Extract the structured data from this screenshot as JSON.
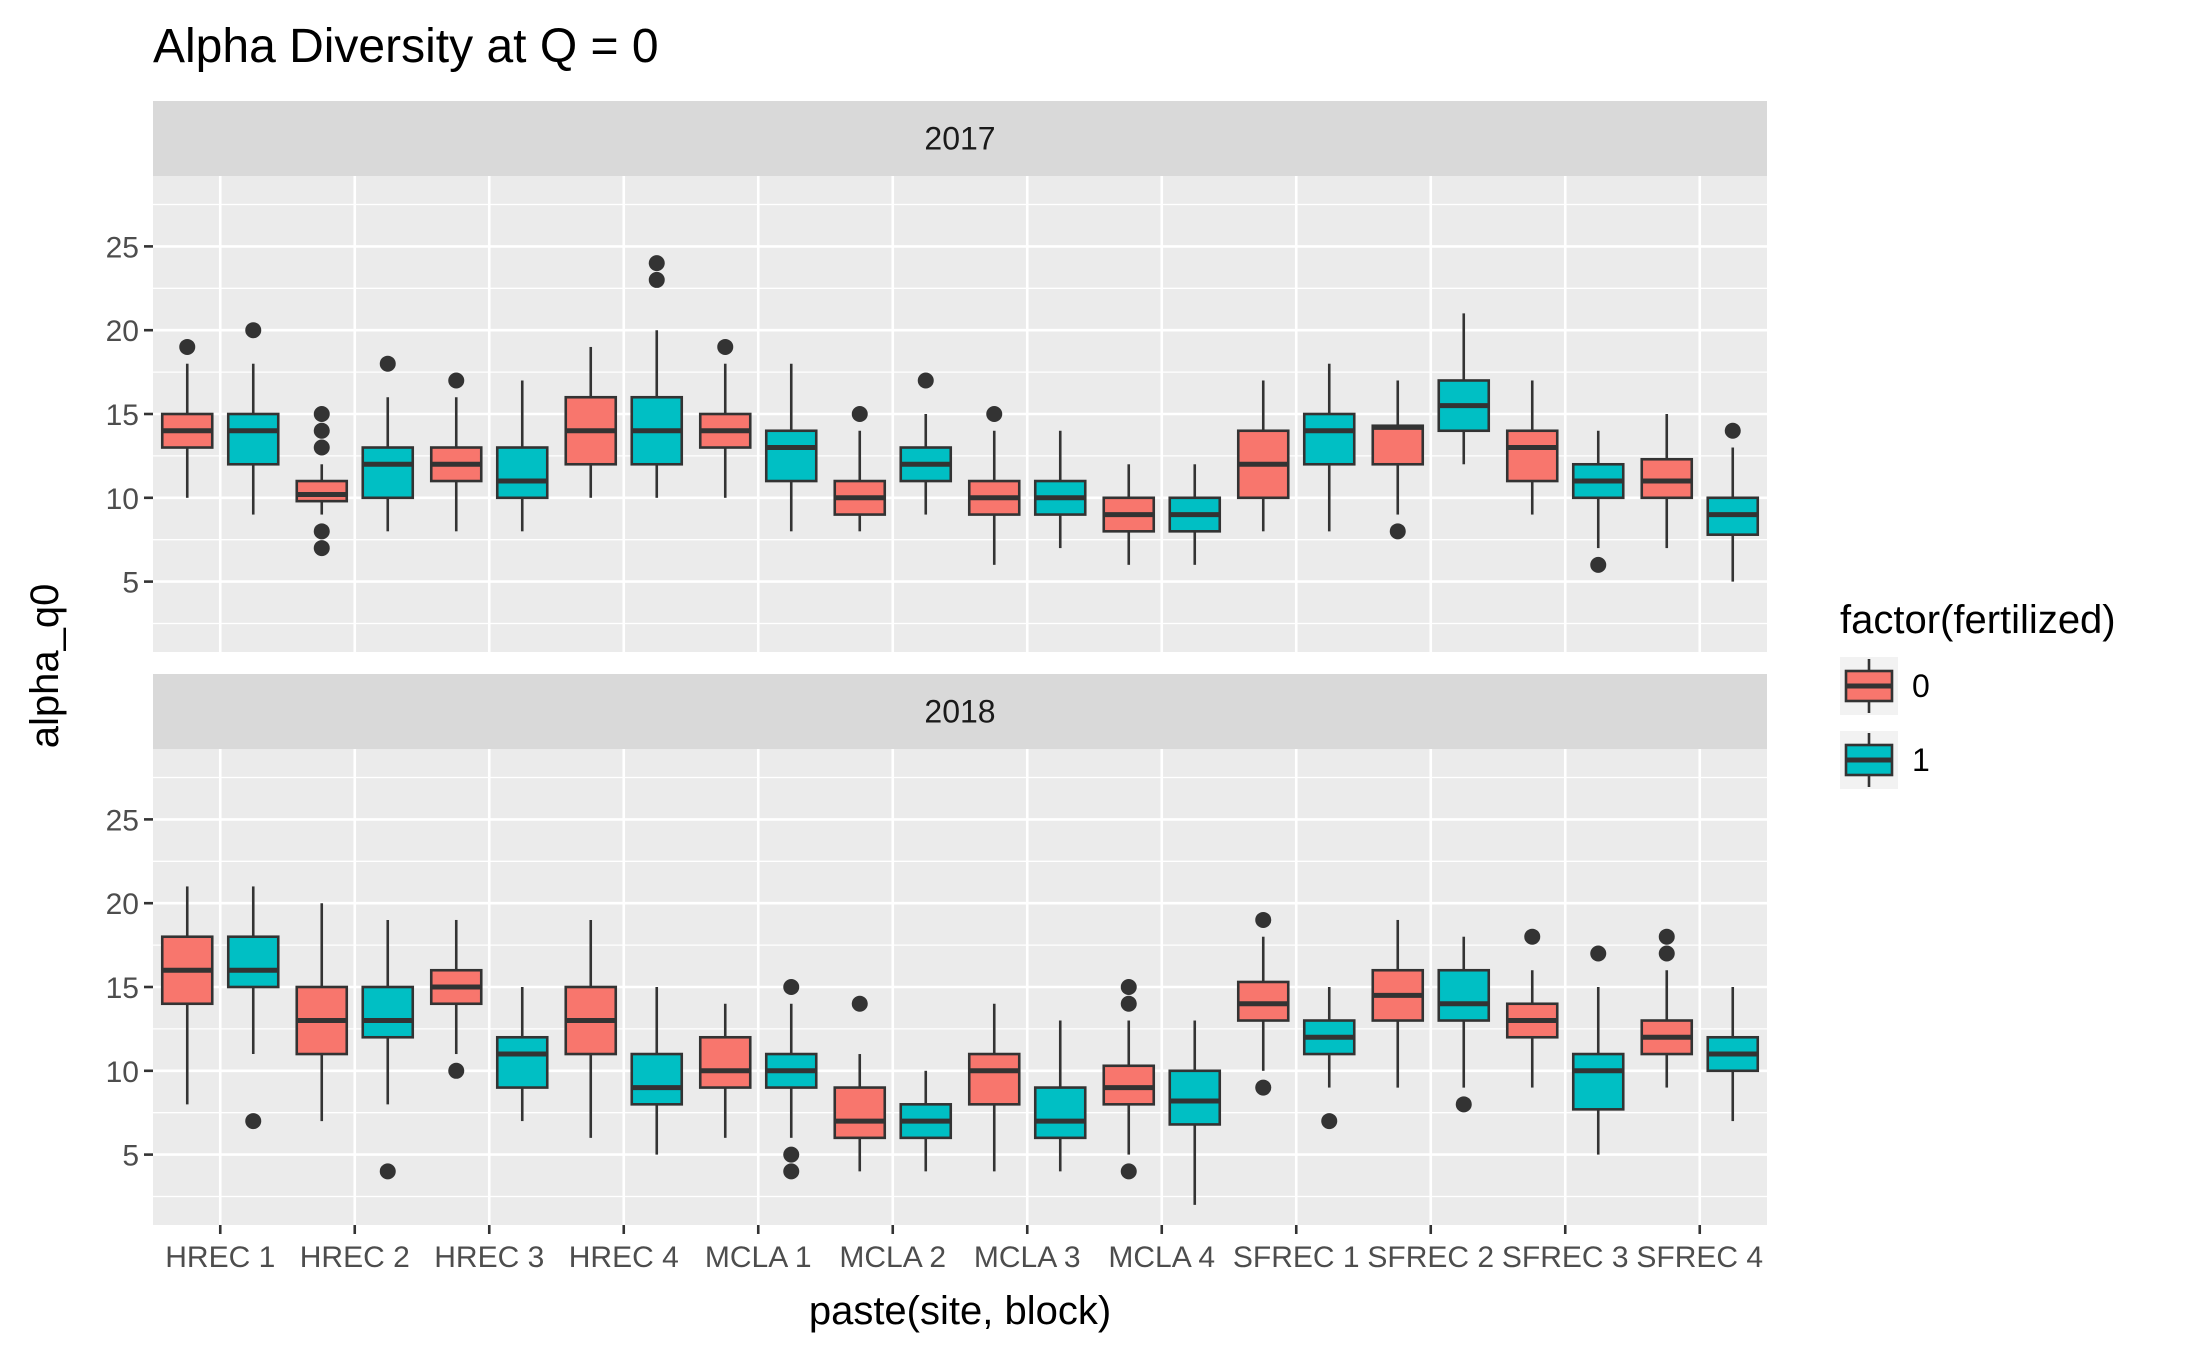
{
  "chart_data": {
    "type": "boxplot",
    "title": "Alpha Diversity at Q = 0",
    "xlabel": "paste(site, block)",
    "ylabel": "alpha_q0",
    "ylim": [
      0.8,
      29.2
    ],
    "yticks": [
      5,
      10,
      15,
      20,
      25
    ],
    "categories": [
      "HREC 1",
      "HREC 2",
      "HREC 3",
      "HREC 4",
      "MCLA 1",
      "MCLA 2",
      "MCLA 3",
      "MCLA 4",
      "SFREC 1",
      "SFREC 2",
      "SFREC 3",
      "SFREC 4"
    ],
    "legend": {
      "title": "factor(fertilized)",
      "position": "right",
      "items": [
        {
          "label": "0",
          "color": "#F8766D"
        },
        {
          "label": "1",
          "color": "#00BFC4"
        }
      ]
    },
    "facets": [
      {
        "label": "2017",
        "series": [
          {
            "name": "0",
            "color": "#F8766D",
            "boxes": [
              {
                "low": 10,
                "q1": 13,
                "median": 14,
                "q3": 15,
                "high": 18,
                "outliers": [
                  19
                ]
              },
              {
                "low": 9,
                "q1": 9.8,
                "median": 10.2,
                "q3": 11,
                "high": 12,
                "outliers": [
                  7,
                  8,
                  13,
                  14,
                  15
                ]
              },
              {
                "low": 8,
                "q1": 11,
                "median": 12,
                "q3": 13,
                "high": 16,
                "outliers": [
                  17
                ]
              },
              {
                "low": 10,
                "q1": 12,
                "median": 14,
                "q3": 16,
                "high": 19,
                "outliers": []
              },
              {
                "low": 10,
                "q1": 13,
                "median": 14,
                "q3": 15,
                "high": 18,
                "outliers": [
                  19
                ]
              },
              {
                "low": 8,
                "q1": 9,
                "median": 10,
                "q3": 11,
                "high": 14,
                "outliers": [
                  15
                ]
              },
              {
                "low": 6,
                "q1": 9,
                "median": 10,
                "q3": 11,
                "high": 14,
                "outliers": [
                  15
                ]
              },
              {
                "low": 6,
                "q1": 8,
                "median": 9,
                "q3": 10,
                "high": 12,
                "outliers": []
              },
              {
                "low": 8,
                "q1": 10,
                "median": 12,
                "q3": 14,
                "high": 17,
                "outliers": []
              },
              {
                "low": 9,
                "q1": 12,
                "median": 14.2,
                "q3": 14.3,
                "high": 17,
                "outliers": [
                  8
                ]
              },
              {
                "low": 9,
                "q1": 11,
                "median": 13,
                "q3": 14,
                "high": 17,
                "outliers": []
              },
              {
                "low": 7,
                "q1": 10,
                "median": 11,
                "q3": 12.3,
                "high": 15,
                "outliers": []
              }
            ]
          },
          {
            "name": "1",
            "color": "#00BFC4",
            "boxes": [
              {
                "low": 9,
                "q1": 12,
                "median": 14,
                "q3": 15,
                "high": 18,
                "outliers": [
                  20
                ]
              },
              {
                "low": 8,
                "q1": 10,
                "median": 12,
                "q3": 13,
                "high": 16,
                "outliers": [
                  18
                ]
              },
              {
                "low": 8,
                "q1": 10,
                "median": 11,
                "q3": 13,
                "high": 17,
                "outliers": []
              },
              {
                "low": 10,
                "q1": 12,
                "median": 14,
                "q3": 16,
                "high": 20,
                "outliers": [
                  23,
                  24
                ]
              },
              {
                "low": 8,
                "q1": 11,
                "median": 13,
                "q3": 14,
                "high": 18,
                "outliers": []
              },
              {
                "low": 9,
                "q1": 11,
                "median": 12,
                "q3": 13,
                "high": 15,
                "outliers": [
                  17
                ]
              },
              {
                "low": 7,
                "q1": 9,
                "median": 10,
                "q3": 11,
                "high": 14,
                "outliers": []
              },
              {
                "low": 6,
                "q1": 8,
                "median": 9,
                "q3": 10,
                "high": 12,
                "outliers": []
              },
              {
                "low": 8,
                "q1": 12,
                "median": 14,
                "q3": 15,
                "high": 18,
                "outliers": []
              },
              {
                "low": 12,
                "q1": 14,
                "median": 15.5,
                "q3": 17,
                "high": 21,
                "outliers": []
              },
              {
                "low": 7,
                "q1": 10,
                "median": 11,
                "q3": 12,
                "high": 14,
                "outliers": [
                  6
                ]
              },
              {
                "low": 5,
                "q1": 7.8,
                "median": 9,
                "q3": 10,
                "high": 13,
                "outliers": [
                  14
                ]
              }
            ]
          }
        ]
      },
      {
        "label": "2018",
        "series": [
          {
            "name": "0",
            "color": "#F8766D",
            "boxes": [
              {
                "low": 8,
                "q1": 14,
                "median": 16,
                "q3": 18,
                "high": 21,
                "outliers": []
              },
              {
                "low": 7,
                "q1": 11,
                "median": 13,
                "q3": 15,
                "high": 20,
                "outliers": []
              },
              {
                "low": 11,
                "q1": 14,
                "median": 15,
                "q3": 16,
                "high": 19,
                "outliers": [
                  10
                ]
              },
              {
                "low": 6,
                "q1": 11,
                "median": 13,
                "q3": 15,
                "high": 19,
                "outliers": []
              },
              {
                "low": 6,
                "q1": 9,
                "median": 10,
                "q3": 12,
                "high": 14,
                "outliers": []
              },
              {
                "low": 4,
                "q1": 6,
                "median": 7,
                "q3": 9,
                "high": 11,
                "outliers": [
                  14
                ]
              },
              {
                "low": 4,
                "q1": 8,
                "median": 10,
                "q3": 11,
                "high": 14,
                "outliers": []
              },
              {
                "low": 5,
                "q1": 8,
                "median": 9,
                "q3": 10.3,
                "high": 13,
                "outliers": [
                  4,
                  14,
                  15
                ]
              },
              {
                "low": 10,
                "q1": 13,
                "median": 14,
                "q3": 15.3,
                "high": 18,
                "outliers": [
                  9,
                  19
                ]
              },
              {
                "low": 9,
                "q1": 13,
                "median": 14.5,
                "q3": 16,
                "high": 19,
                "outliers": []
              },
              {
                "low": 9,
                "q1": 12,
                "median": 13,
                "q3": 14,
                "high": 16,
                "outliers": [
                  18
                ]
              },
              {
                "low": 9,
                "q1": 11,
                "median": 12,
                "q3": 13,
                "high": 16,
                "outliers": [
                  17,
                  18
                ]
              }
            ]
          },
          {
            "name": "1",
            "color": "#00BFC4",
            "boxes": [
              {
                "low": 11,
                "q1": 15,
                "median": 16,
                "q3": 18,
                "high": 21,
                "outliers": [
                  7
                ]
              },
              {
                "low": 8,
                "q1": 12,
                "median": 13,
                "q3": 15,
                "high": 19,
                "outliers": [
                  4
                ]
              },
              {
                "low": 7,
                "q1": 9,
                "median": 11,
                "q3": 12,
                "high": 15,
                "outliers": []
              },
              {
                "low": 5,
                "q1": 8,
                "median": 9,
                "q3": 11,
                "high": 15,
                "outliers": []
              },
              {
                "low": 6,
                "q1": 9,
                "median": 10,
                "q3": 11,
                "high": 14,
                "outliers": [
                  4,
                  5,
                  15
                ]
              },
              {
                "low": 4,
                "q1": 6,
                "median": 7,
                "q3": 8,
                "high": 10,
                "outliers": []
              },
              {
                "low": 4,
                "q1": 6,
                "median": 7,
                "q3": 9,
                "high": 13,
                "outliers": []
              },
              {
                "low": 2,
                "q1": 6.8,
                "median": 8.2,
                "q3": 10,
                "high": 13,
                "outliers": []
              },
              {
                "low": 9,
                "q1": 11,
                "median": 12,
                "q3": 13,
                "high": 15,
                "outliers": [
                  7
                ]
              },
              {
                "low": 9,
                "q1": 13,
                "median": 14,
                "q3": 16,
                "high": 18,
                "outliers": [
                  8
                ]
              },
              {
                "low": 5,
                "q1": 7.7,
                "median": 10,
                "q3": 11,
                "high": 15,
                "outliers": [
                  17
                ]
              },
              {
                "low": 7,
                "q1": 10,
                "median": 11,
                "q3": 12,
                "high": 15,
                "outliers": []
              }
            ]
          }
        ]
      }
    ]
  }
}
